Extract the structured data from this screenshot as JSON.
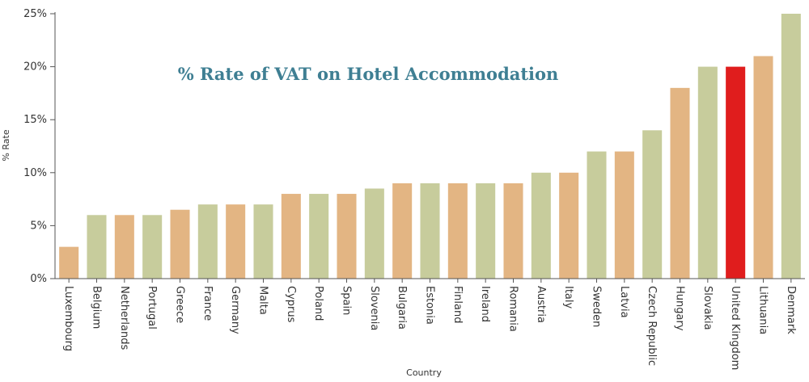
{
  "chart_data": {
    "type": "bar",
    "title": "% Rate of VAT on Hotel Accommodation",
    "xlabel": "Country",
    "ylabel": "% Rate",
    "ylim": [
      0,
      25
    ],
    "yticks": [
      0,
      5,
      10,
      15,
      20,
      25
    ],
    "ytick_labels": [
      "0%",
      "5%",
      "10%",
      "15%",
      "20%",
      "25%"
    ],
    "grid": false,
    "categories": [
      "Luxembourg",
      "Belgium",
      "Netherlands",
      "Portugal",
      "Greece",
      "France",
      "Germany",
      "Malta",
      "Cyprus",
      "Poland",
      "Spain",
      "Slovenia",
      "Bulgaria",
      "Estonia",
      "Finland",
      "Ireland",
      "Romania",
      "Austria",
      "Italy",
      "Sweden",
      "Latvia",
      "Czech Republic",
      "Hungary",
      "Slovakia",
      "United Kingdom",
      "Lithuania",
      "Denmark"
    ],
    "values": [
      3,
      6,
      6,
      6,
      6.5,
      7,
      7,
      7,
      8,
      8,
      8,
      8.5,
      9,
      9,
      9,
      9,
      9,
      10,
      10,
      12,
      12,
      14,
      18,
      20,
      20,
      21,
      25
    ],
    "bar_colors": [
      "#e3b583",
      "#c7cc9c",
      "#e3b583",
      "#c7cc9c",
      "#e3b583",
      "#c7cc9c",
      "#e3b583",
      "#c7cc9c",
      "#e3b583",
      "#c7cc9c",
      "#e3b583",
      "#c7cc9c",
      "#e3b583",
      "#c7cc9c",
      "#e3b583",
      "#c7cc9c",
      "#e3b583",
      "#c7cc9c",
      "#e3b583",
      "#c7cc9c",
      "#e3b583",
      "#c7cc9c",
      "#e3b583",
      "#c7cc9c",
      "#e01d1d",
      "#e3b583",
      "#c7cc9c"
    ],
    "colors": {
      "axis": "#555555",
      "title": "#3f7f93",
      "highlight": "#e01d1d"
    }
  }
}
